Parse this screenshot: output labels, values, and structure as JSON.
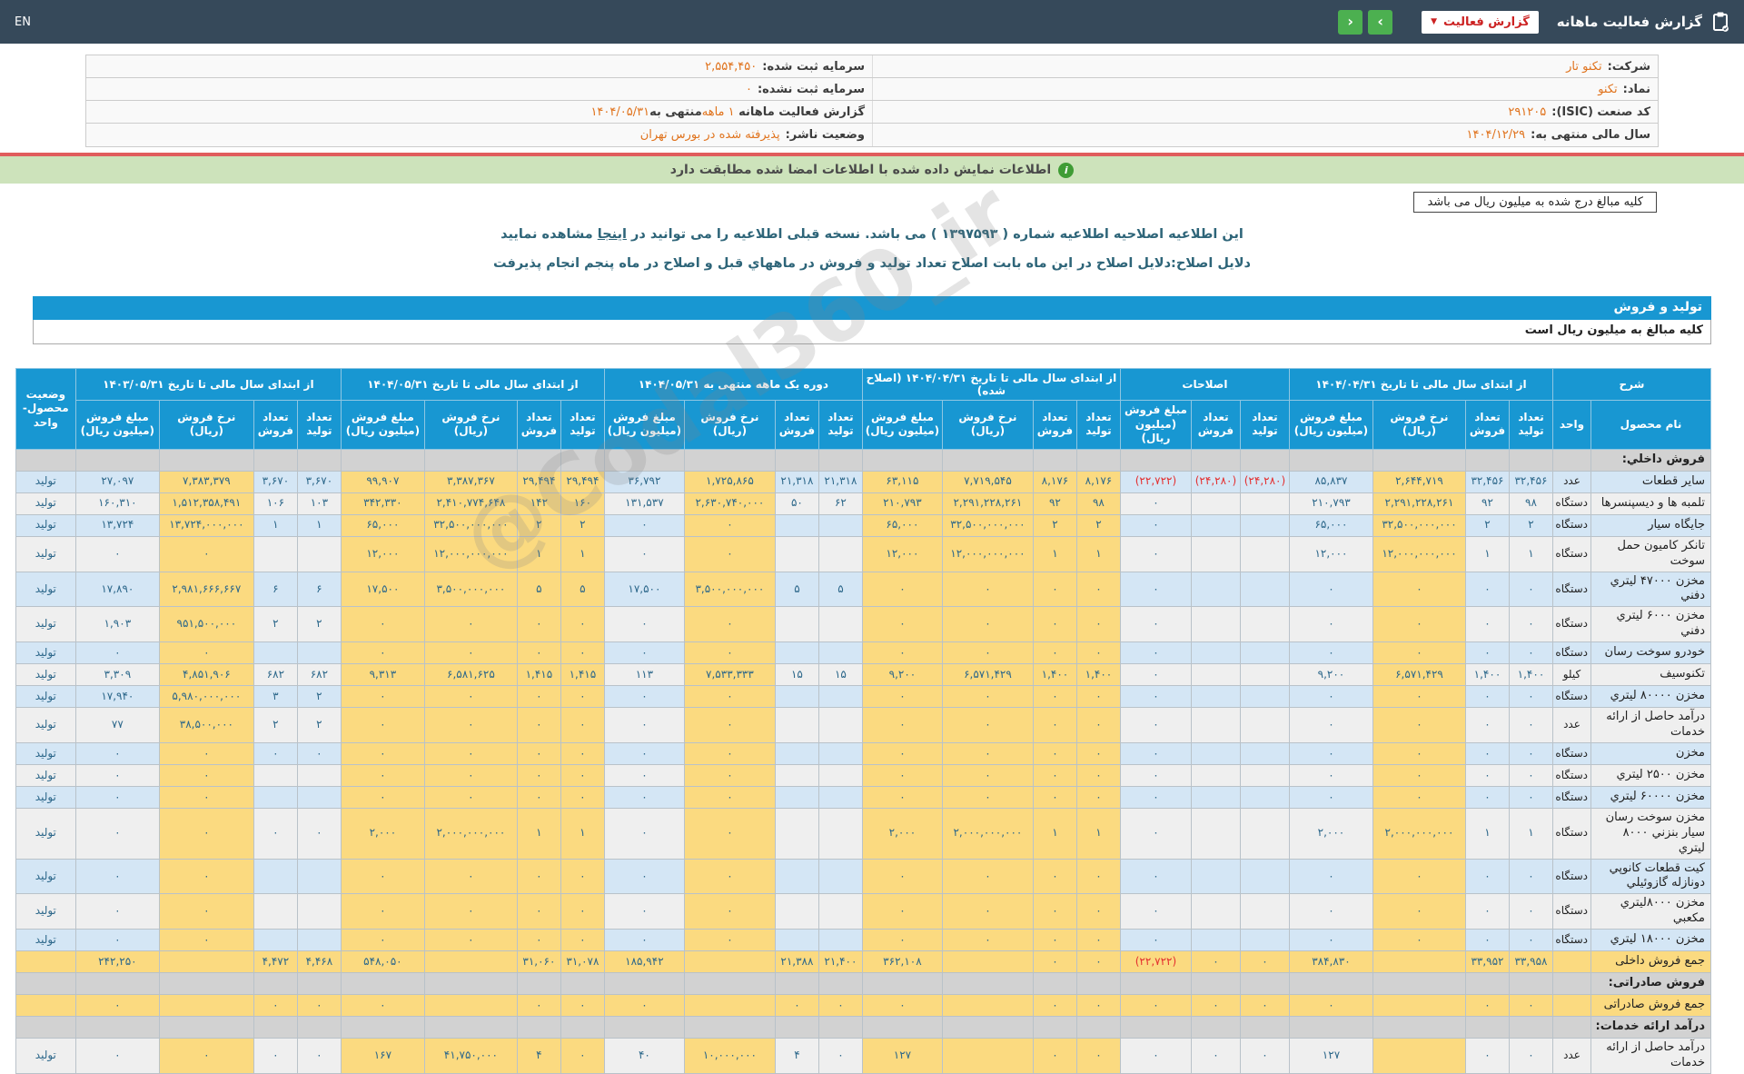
{
  "topbar": {
    "title": "گزارش فعالیت ماهانه",
    "dropdown_label": "گزارش فعالیت",
    "caret_icon": "▼",
    "nav_right_glyph": "›",
    "nav_left_glyph": "‹",
    "en_label": "EN"
  },
  "info": {
    "rows": [
      {
        "right_label": "شرکت:",
        "right_value": "تکنو تار",
        "left_label": "سرمایه ثبت شده:",
        "left_value": "۲,۵۵۴,۴۵۰"
      },
      {
        "right_label": "نماد:",
        "right_value": "تکنو",
        "left_label": "سرمایه ثبت نشده:",
        "left_value": "۰"
      },
      {
        "right_label": "کد صنعت (ISIC):",
        "right_value": "۲۹۱۲۰۵",
        "left_seg1": "گزارش فعالیت ماهانه ",
        "left_seg2": "۱ ماهه",
        "left_seg3": "منتهی به",
        "left_seg4": "۱۴۰۴/۰۵/۳۱"
      },
      {
        "right_label": "سال مالی منتهی به:",
        "right_value": "۱۴۰۴/۱۲/۲۹",
        "left_label": "وضعیت ناشر:",
        "left_value": "پذیرفته شده در بورس تهران"
      }
    ]
  },
  "banners": {
    "signature_match": "اطلاعات نمایش داده شده با اطلاعات امضا شده مطابقت دارد",
    "info_glyph": "i",
    "amounts_unit": "کلیه مبالغ درج شده به میلیون ریال می باشد"
  },
  "notices": {
    "amendment_pre": "این اطلاعیه اصلاحیه اطلاعیه شماره ( ۱۳۹۷۵۹۳ ) می باشد. نسخه قبلی اطلاعیه را می توانید در ",
    "amendment_link": "اینجا",
    "amendment_post": " مشاهده نمایید",
    "reason": "دلایل اصلاح:دلایل اصلاح در این ماه بابت اصلاح تعداد تولید و فروش در ماههاي قبل و اصلاح در ماه پنجم انجام پذیرفت"
  },
  "table": {
    "section_title": "تولید و فروش",
    "unit_note": "کلیه مبالغ به میلیون ریال است",
    "desc_header": "شرح",
    "name_header": "نام محصول",
    "unit_header": "واحد",
    "status_header": "وضعیت\nمحصول-واحد",
    "groups": [
      {
        "key": "a",
        "title": "از ابتدای سال مالی تا تاریخ ۱۴۰۴/۰۴/۳۱",
        "cols": [
          "تعداد\nتولید",
          "تعداد\nفروش",
          "نرخ فروش\n(ریال)",
          "مبلغ فروش\n(میلیون ریال)"
        ]
      },
      {
        "key": "b",
        "title": "اصلاحات",
        "cols": [
          "تعداد\nتولید",
          "تعداد\nفروش",
          "مبلغ فروش\n(میلیون ریال)"
        ]
      },
      {
        "key": "c",
        "title": "از ابتدای سال مالی تا تاریخ ۱۴۰۴/۰۴/۳۱ (اصلاح شده)",
        "cols": [
          "تعداد\nتولید",
          "تعداد\nفروش",
          "نرخ فروش\n(ریال)",
          "مبلغ فروش\n(میلیون ریال)"
        ]
      },
      {
        "key": "d",
        "title": "دوره یک ماهه منتهی به ۱۴۰۴/۰۵/۳۱",
        "cols": [
          "تعداد\nتولید",
          "تعداد\nفروش",
          "نرخ فروش\n(ریال)",
          "مبلغ فروش\n(میلیون ریال)"
        ]
      },
      {
        "key": "e",
        "title": "از ابتدای سال مالی تا تاریخ ۱۴۰۴/۰۵/۳۱",
        "cols": [
          "تعداد\nتولید",
          "تعداد\nفروش",
          "نرخ فروش\n(ریال)",
          "مبلغ فروش\n(میلیون ریال)"
        ]
      },
      {
        "key": "f",
        "title": "از ابتدای سال مالی تا تاریخ ۱۴۰۳/۰۵/۳۱",
        "cols": [
          "تعداد\nتولید",
          "تعداد\nفروش",
          "نرخ فروش\n(ریال)",
          "مبلغ فروش\n(میلیون ریال)"
        ]
      }
    ],
    "rows": [
      {
        "type": "section",
        "bg": "gray",
        "name": "فروش داخلي:"
      },
      {
        "type": "data",
        "bg": "blue",
        "name": "سایر قطعات",
        "unit": "عدد",
        "status": "تولید",
        "a": [
          "۳۲,۴۵۶",
          "۳۲,۴۵۶",
          "۲,۶۴۴,۷۱۹",
          "۸۵,۸۳۷"
        ],
        "b": [
          "(۲۴,۲۸۰)",
          "(۲۴,۲۸۰)",
          "(۲۲,۷۲۲)"
        ],
        "c": [
          "۸,۱۷۶",
          "۸,۱۷۶",
          "۷,۷۱۹,۵۴۵",
          "۶۳,۱۱۵"
        ],
        "d": [
          "۲۱,۳۱۸",
          "۲۱,۳۱۸",
          "۱,۷۲۵,۸۶۵",
          "۳۶,۷۹۲"
        ],
        "e": [
          "۲۹,۴۹۴",
          "۲۹,۴۹۴",
          "۳,۳۸۷,۳۶۷",
          "۹۹,۹۰۷"
        ],
        "f": [
          "۳,۶۷۰",
          "۳,۶۷۰",
          "۷,۳۸۳,۳۷۹",
          "۲۷,۰۹۷"
        ]
      },
      {
        "type": "data",
        "bg": "white",
        "name": "تلمبه ها و دیسپنسرها",
        "unit": "دستگاه",
        "status": "تولید",
        "a": [
          "۹۸",
          "۹۲",
          "۲,۲۹۱,۲۲۸,۲۶۱",
          "۲۱۰,۷۹۳"
        ],
        "b": [
          "",
          "",
          "۰"
        ],
        "c": [
          "۹۸",
          "۹۲",
          "۲,۲۹۱,۲۲۸,۲۶۱",
          "۲۱۰,۷۹۳"
        ],
        "d": [
          "۶۲",
          "۵۰",
          "۲,۶۳۰,۷۴۰,۰۰۰",
          "۱۳۱,۵۳۷"
        ],
        "e": [
          "۱۶۰",
          "۱۴۲",
          "۲,۴۱۰,۷۷۴,۶۴۸",
          "۳۴۲,۳۳۰"
        ],
        "f": [
          "۱۰۳",
          "۱۰۶",
          "۱,۵۱۲,۳۵۸,۴۹۱",
          "۱۶۰,۳۱۰"
        ]
      },
      {
        "type": "data",
        "bg": "blue",
        "name": "جایگاه سیار",
        "unit": "دستگاه",
        "status": "تولید",
        "a": [
          "۲",
          "۲",
          "۳۲,۵۰۰,۰۰۰,۰۰۰",
          "۶۵,۰۰۰"
        ],
        "b": [
          "",
          "",
          "۰"
        ],
        "c": [
          "۲",
          "۲",
          "۳۲,۵۰۰,۰۰۰,۰۰۰",
          "۶۵,۰۰۰"
        ],
        "d": [
          "",
          "",
          "۰",
          "۰"
        ],
        "e": [
          "۲",
          "۲",
          "۳۲,۵۰۰,۰۰۰,۰۰۰",
          "۶۵,۰۰۰"
        ],
        "f": [
          "۱",
          "۱",
          "۱۳,۷۲۴,۰۰۰,۰۰۰",
          "۱۳,۷۲۴"
        ]
      },
      {
        "type": "data",
        "bg": "white",
        "name": "تانکر کامیون حمل سوخت",
        "unit": "دستگاه",
        "status": "تولید",
        "a": [
          "۱",
          "۱",
          "۱۲,۰۰۰,۰۰۰,۰۰۰",
          "۱۲,۰۰۰"
        ],
        "b": [
          "",
          "",
          "۰"
        ],
        "c": [
          "۱",
          "۱",
          "۱۲,۰۰۰,۰۰۰,۰۰۰",
          "۱۲,۰۰۰"
        ],
        "d": [
          "",
          "",
          "۰",
          "۰"
        ],
        "e": [
          "۱",
          "۱",
          "۱۲,۰۰۰,۰۰۰,۰۰۰",
          "۱۲,۰۰۰"
        ],
        "f": [
          "",
          "",
          "۰",
          "۰"
        ]
      },
      {
        "type": "data",
        "bg": "blue",
        "name": "مخزن ۴۷۰۰۰ لیتري دفني",
        "unit": "دستگاه",
        "status": "تولید",
        "a": [
          "۰",
          "۰",
          "۰",
          "۰"
        ],
        "b": [
          "",
          "",
          "۰"
        ],
        "c": [
          "۰",
          "۰",
          "۰",
          "۰"
        ],
        "d": [
          "۵",
          "۵",
          "۳,۵۰۰,۰۰۰,۰۰۰",
          "۱۷,۵۰۰"
        ],
        "e": [
          "۵",
          "۵",
          "۳,۵۰۰,۰۰۰,۰۰۰",
          "۱۷,۵۰۰"
        ],
        "f": [
          "۶",
          "۶",
          "۲,۹۸۱,۶۶۶,۶۶۷",
          "۱۷,۸۹۰"
        ]
      },
      {
        "type": "data",
        "bg": "white",
        "name": "مخزن ۶۰۰۰ لیتري دفني",
        "unit": "دستگاه",
        "status": "تولید",
        "a": [
          "۰",
          "۰",
          "۰",
          "۰"
        ],
        "b": [
          "",
          "",
          "۰"
        ],
        "c": [
          "۰",
          "۰",
          "۰",
          "۰"
        ],
        "d": [
          "",
          "",
          "۰",
          "۰"
        ],
        "e": [
          "۰",
          "۰",
          "۰",
          "۰"
        ],
        "f": [
          "۲",
          "۲",
          "۹۵۱,۵۰۰,۰۰۰",
          "۱,۹۰۳"
        ]
      },
      {
        "type": "data",
        "bg": "blue",
        "name": "خودرو سوخت رسان",
        "unit": "دستگاه",
        "status": "تولید",
        "a": [
          "۰",
          "۰",
          "۰",
          "۰"
        ],
        "b": [
          "",
          "",
          "۰"
        ],
        "c": [
          "۰",
          "۰",
          "۰",
          "۰"
        ],
        "d": [
          "",
          "",
          "۰",
          "۰"
        ],
        "e": [
          "۰",
          "۰",
          "۰",
          "۰"
        ],
        "f": [
          "",
          "",
          "۰",
          "۰"
        ]
      },
      {
        "type": "data",
        "bg": "white",
        "name": "تکنوسیف",
        "unit": "کیلو",
        "status": "تولید",
        "a": [
          "۱,۴۰۰",
          "۱,۴۰۰",
          "۶,۵۷۱,۴۲۹",
          "۹,۲۰۰"
        ],
        "b": [
          "",
          "",
          "۰"
        ],
        "c": [
          "۱,۴۰۰",
          "۱,۴۰۰",
          "۶,۵۷۱,۴۲۹",
          "۹,۲۰۰"
        ],
        "d": [
          "۱۵",
          "۱۵",
          "۷,۵۳۳,۳۳۳",
          "۱۱۳"
        ],
        "e": [
          "۱,۴۱۵",
          "۱,۴۱۵",
          "۶,۵۸۱,۶۲۵",
          "۹,۳۱۳"
        ],
        "f": [
          "۶۸۲",
          "۶۸۲",
          "۴,۸۵۱,۹۰۶",
          "۳,۳۰۹"
        ]
      },
      {
        "type": "data",
        "bg": "blue",
        "name": "مخزن ۸۰۰۰۰ لیتري",
        "unit": "دستگاه",
        "status": "تولید",
        "a": [
          "۰",
          "۰",
          "۰",
          "۰"
        ],
        "b": [
          "",
          "",
          "۰"
        ],
        "c": [
          "۰",
          "۰",
          "۰",
          "۰"
        ],
        "d": [
          "",
          "",
          "۰",
          "۰"
        ],
        "e": [
          "۰",
          "۰",
          "۰",
          "۰"
        ],
        "f": [
          "۲",
          "۳",
          "۵,۹۸۰,۰۰۰,۰۰۰",
          "۱۷,۹۴۰"
        ]
      },
      {
        "type": "data",
        "bg": "white",
        "name": "درآمد حاصل از ارائه خدمات",
        "unit": "عدد",
        "status": "تولید",
        "a": [
          "۰",
          "۰",
          "۰",
          "۰"
        ],
        "b": [
          "",
          "",
          "۰"
        ],
        "c": [
          "۰",
          "۰",
          "۰",
          "۰"
        ],
        "d": [
          "",
          "",
          "۰",
          "۰"
        ],
        "e": [
          "۰",
          "۰",
          "۰",
          "۰"
        ],
        "f": [
          "۲",
          "۲",
          "۳۸,۵۰۰,۰۰۰",
          "۷۷"
        ]
      },
      {
        "type": "data",
        "bg": "blue",
        "name": "مخزن",
        "unit": "دستگاه",
        "status": "تولید",
        "a": [
          "۰",
          "۰",
          "۰",
          "۰"
        ],
        "b": [
          "",
          "",
          "۰"
        ],
        "c": [
          "۰",
          "۰",
          "۰",
          "۰"
        ],
        "d": [
          "",
          "",
          "۰",
          "۰"
        ],
        "e": [
          "۰",
          "۰",
          "۰",
          "۰"
        ],
        "f": [
          "۰",
          "۰",
          "۰",
          "۰"
        ]
      },
      {
        "type": "data",
        "bg": "white",
        "name": "مخزن ۲۵۰۰ لیتري",
        "unit": "دستگاه",
        "status": "تولید",
        "a": [
          "۰",
          "۰",
          "۰",
          "۰"
        ],
        "b": [
          "",
          "",
          "۰"
        ],
        "c": [
          "۰",
          "۰",
          "۰",
          "۰"
        ],
        "d": [
          "",
          "",
          "۰",
          "۰"
        ],
        "e": [
          "۰",
          "۰",
          "۰",
          "۰"
        ],
        "f": [
          "",
          "",
          "۰",
          "۰"
        ]
      },
      {
        "type": "data",
        "bg": "blue",
        "name": "مخزن ۶۰۰۰۰ لیتري",
        "unit": "دستگاه",
        "status": "تولید",
        "a": [
          "۰",
          "۰",
          "۰",
          "۰"
        ],
        "b": [
          "",
          "",
          "۰"
        ],
        "c": [
          "۰",
          "۰",
          "۰",
          "۰"
        ],
        "d": [
          "",
          "",
          "۰",
          "۰"
        ],
        "e": [
          "۰",
          "۰",
          "۰",
          "۰"
        ],
        "f": [
          "",
          "",
          "۰",
          "۰"
        ]
      },
      {
        "type": "data",
        "bg": "white",
        "name": "مخزن سوخت رسان سیار بنزني ۸۰۰۰ لیتري",
        "unit": "دستگاه",
        "status": "تولید",
        "a": [
          "۱",
          "۱",
          "۲,۰۰۰,۰۰۰,۰۰۰",
          "۲,۰۰۰"
        ],
        "b": [
          "",
          "",
          "۰"
        ],
        "c": [
          "۱",
          "۱",
          "۲,۰۰۰,۰۰۰,۰۰۰",
          "۲,۰۰۰"
        ],
        "d": [
          "",
          "",
          "۰",
          "۰"
        ],
        "e": [
          "۱",
          "۱",
          "۲,۰۰۰,۰۰۰,۰۰۰",
          "۲,۰۰۰"
        ],
        "f": [
          "۰",
          "۰",
          "۰",
          "۰"
        ]
      },
      {
        "type": "data",
        "bg": "blue",
        "name": "کیت قطعات کانوپي دونازله گازوئیلي",
        "unit": "دستگاه",
        "status": "تولید",
        "a": [
          "۰",
          "۰",
          "۰",
          "۰"
        ],
        "b": [
          "",
          "",
          "۰"
        ],
        "c": [
          "۰",
          "۰",
          "۰",
          "۰"
        ],
        "d": [
          "",
          "",
          "۰",
          "۰"
        ],
        "e": [
          "۰",
          "۰",
          "۰",
          "۰"
        ],
        "f": [
          "",
          "",
          "۰",
          "۰"
        ]
      },
      {
        "type": "data",
        "bg": "white",
        "name": "مخزن ۸۰۰۰لیتري مکعبي",
        "unit": "دستگاه",
        "status": "تولید",
        "a": [
          "۰",
          "۰",
          "۰",
          "۰"
        ],
        "b": [
          "",
          "",
          "۰"
        ],
        "c": [
          "۰",
          "۰",
          "۰",
          "۰"
        ],
        "d": [
          "",
          "",
          "۰",
          "۰"
        ],
        "e": [
          "۰",
          "۰",
          "۰",
          "۰"
        ],
        "f": [
          "",
          "",
          "۰",
          "۰"
        ]
      },
      {
        "type": "data",
        "bg": "blue",
        "name": "مخزن ۱۸۰۰۰ لیتري",
        "unit": "دستگاه",
        "status": "تولید",
        "a": [
          "۰",
          "۰",
          "۰",
          "۰"
        ],
        "b": [
          "",
          "",
          "۰"
        ],
        "c": [
          "۰",
          "۰",
          "۰",
          "۰"
        ],
        "d": [
          "",
          "",
          "۰",
          "۰"
        ],
        "e": [
          "۰",
          "۰",
          "۰",
          "۰"
        ],
        "f": [
          "",
          "",
          "۰",
          "۰"
        ]
      },
      {
        "type": "total",
        "bg": "total",
        "name": "جمع فروش داخلی",
        "unit": "",
        "status": "",
        "a": [
          "۳۳,۹۵۸",
          "۳۳,۹۵۲",
          "",
          "۳۸۴,۸۳۰"
        ],
        "b": [
          "۰",
          "۰",
          "(۲۲,۷۲۲)"
        ],
        "c": [
          "۰",
          "۰",
          "",
          "۳۶۲,۱۰۸"
        ],
        "d": [
          "۲۱,۴۰۰",
          "۲۱,۳۸۸",
          "",
          "۱۸۵,۹۴۲"
        ],
        "e": [
          "۳۱,۰۷۸",
          "۳۱,۰۶۰",
          "",
          "۵۴۸,۰۵۰"
        ],
        "f": [
          "۴,۴۶۸",
          "۴,۴۷۲",
          "",
          "۲۴۲,۲۵۰"
        ]
      },
      {
        "type": "section",
        "bg": "gray",
        "name": "فروش صادراتی:"
      },
      {
        "type": "total",
        "bg": "total",
        "name": "جمع فروش صادراتی",
        "unit": "",
        "status": "",
        "a": [
          "۰",
          "۰",
          "",
          "۰"
        ],
        "b": [
          "۰",
          "۰",
          "۰"
        ],
        "c": [
          "۰",
          "۰",
          "",
          "۰"
        ],
        "d": [
          "۰",
          "۰",
          "",
          "۰"
        ],
        "e": [
          "۰",
          "۰",
          "",
          "۰"
        ],
        "f": [
          "۰",
          "۰",
          "",
          "۰"
        ]
      },
      {
        "type": "section",
        "bg": "gray",
        "name": "درآمد ارائه خدمات:"
      },
      {
        "type": "data",
        "bg": "white",
        "name": "درآمد حاصل از ارائه خدمات",
        "unit": "عدد",
        "status": "تولید",
        "a": [
          "۰",
          "۰",
          "",
          "۱۲۷"
        ],
        "b": [
          "۰",
          "۰",
          "۰"
        ],
        "c": [
          "۰",
          "۰",
          "",
          "۱۲۷"
        ],
        "d": [
          "۰",
          "۴",
          "۱۰,۰۰۰,۰۰۰",
          "۴۰"
        ],
        "e": [
          "۰",
          "۴",
          "۴۱,۷۵۰,۰۰۰",
          "۱۶۷"
        ],
        "f": [
          "۰",
          "۰",
          "۰",
          "۰"
        ]
      }
    ]
  },
  "watermark": "@Codal360_ir"
}
